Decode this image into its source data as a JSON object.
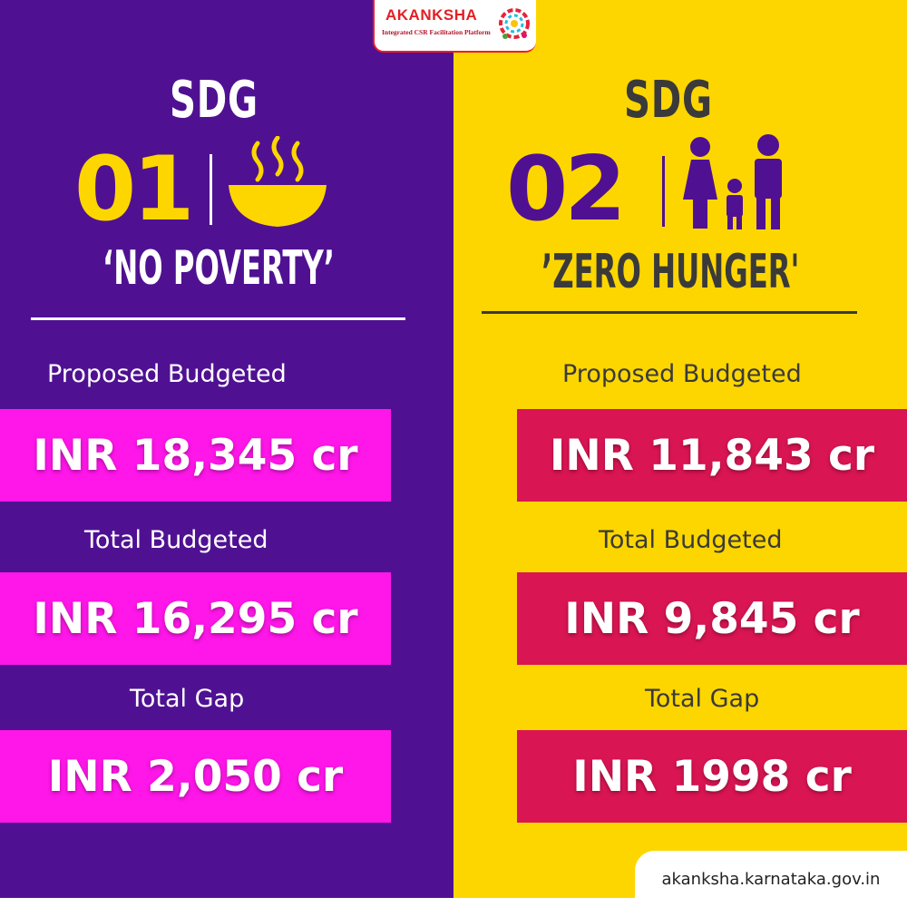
{
  "logo": {
    "brand": "AKANKSHA",
    "tagline": "Integrated CSR Facilitation Platform"
  },
  "left": {
    "sdg": "SDG",
    "number": "01",
    "goal": "‘NO POVERTY’",
    "icon": "bowl-icon",
    "rows": [
      {
        "label": "Proposed Budgeted",
        "value": "INR 18,345 cr"
      },
      {
        "label": "Total Budgeted",
        "value": "INR 16,295 cr"
      },
      {
        "label": "Total Gap",
        "value": "INR 2,050 cr"
      }
    ]
  },
  "right": {
    "sdg": "SDG",
    "number": "02",
    "goal": "’ZERO HUNGER'",
    "icon": "family-icon",
    "rows": [
      {
        "label": "Proposed Budgeted",
        "value": "INR 11,843 cr"
      },
      {
        "label": "Total Budgeted",
        "value": "INR 9,845 cr"
      },
      {
        "label": "Total Gap",
        "value": "INR 1998 cr"
      }
    ]
  },
  "footer": {
    "url": "akanksha.karnataka.gov.in"
  },
  "colors": {
    "left_bg": "#4f1192",
    "right_bg": "#fdd600",
    "left_box": "#ff16e9",
    "right_box": "#da1553",
    "accent_yellow": "#fdd600",
    "accent_purple": "#4f1192"
  }
}
